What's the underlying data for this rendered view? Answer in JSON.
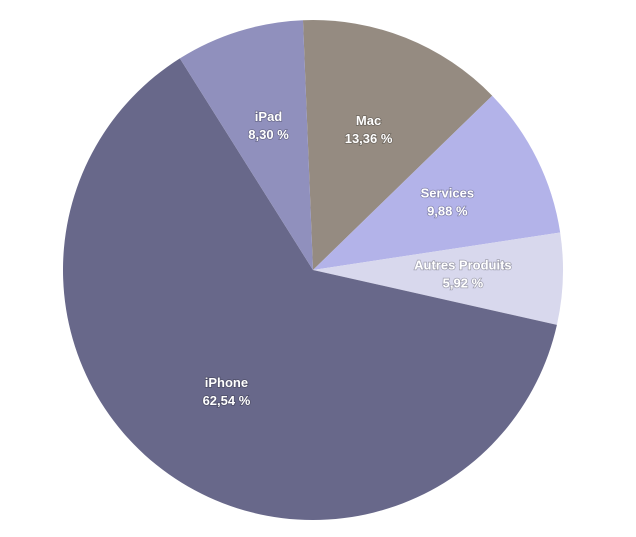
{
  "chart_data": {
    "type": "pie",
    "categories": [
      "Mac",
      "Services",
      "Autres Produits",
      "iPhone",
      "iPad"
    ],
    "values": [
      13.36,
      9.88,
      5.92,
      62.54,
      8.3
    ],
    "value_labels": [
      "13,36 %",
      "9,88 %",
      "5,92 %",
      "62,54 %",
      "8,30 %"
    ],
    "colors": [
      "#958b81",
      "#b3b3e9",
      "#d8d8ed",
      "#68688a",
      "#9090bd"
    ]
  }
}
